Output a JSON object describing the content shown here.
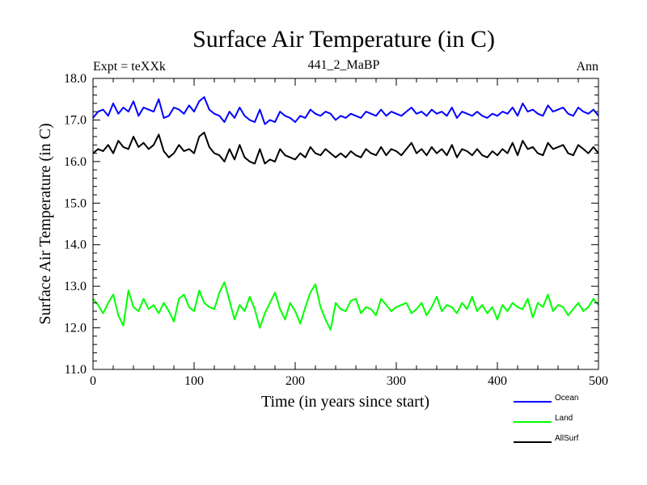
{
  "chart_data": {
    "type": "line",
    "title": "Surface Air Temperature (in C)",
    "subtitle": "441_2_MaBP",
    "left_label": "Expt = teXXk",
    "right_label": "Ann",
    "xlabel": "Time (in years since start)",
    "ylabel": "Surface Air Temperature (in C)",
    "xlim": [
      0,
      500
    ],
    "ylim": [
      11.0,
      18.0
    ],
    "xticks": [
      0,
      100,
      200,
      300,
      400,
      500
    ],
    "xtick_labels": [
      "0",
      "100",
      "200",
      "300",
      "400",
      "500"
    ],
    "yticks": [
      11.0,
      12.0,
      13.0,
      14.0,
      15.0,
      16.0,
      17.0,
      18.0
    ],
    "ytick_labels": [
      "11.0",
      "12.0",
      "13.0",
      "14.0",
      "15.0",
      "16.0",
      "17.0",
      "18.0"
    ],
    "grid": false,
    "legend_position": "bottom-right, below plot",
    "series": [
      {
        "name": "Ocean",
        "color": "#0000ff",
        "x_start": 0,
        "x_step": 5,
        "values": [
          17.05,
          17.2,
          17.25,
          17.1,
          17.4,
          17.15,
          17.3,
          17.2,
          17.45,
          17.1,
          17.3,
          17.25,
          17.2,
          17.5,
          17.05,
          17.1,
          17.3,
          17.25,
          17.15,
          17.35,
          17.2,
          17.45,
          17.55,
          17.25,
          17.15,
          17.1,
          16.95,
          17.2,
          17.05,
          17.3,
          17.1,
          17.0,
          16.95,
          17.25,
          16.9,
          17.0,
          16.95,
          17.2,
          17.1,
          17.05,
          16.95,
          17.1,
          17.05,
          17.25,
          17.15,
          17.1,
          17.2,
          17.15,
          17.0,
          17.1,
          17.05,
          17.15,
          17.1,
          17.05,
          17.2,
          17.15,
          17.1,
          17.25,
          17.1,
          17.2,
          17.15,
          17.1,
          17.2,
          17.3,
          17.15,
          17.2,
          17.1,
          17.25,
          17.15,
          17.2,
          17.1,
          17.3,
          17.05,
          17.2,
          17.15,
          17.1,
          17.2,
          17.1,
          17.05,
          17.15,
          17.1,
          17.2,
          17.15,
          17.3,
          17.1,
          17.4,
          17.2,
          17.25,
          17.15,
          17.1,
          17.35,
          17.2,
          17.25,
          17.3,
          17.15,
          17.1,
          17.3,
          17.2,
          17.15,
          17.25,
          17.1
        ]
      },
      {
        "name": "Land",
        "color": "#00ff00",
        "x_start": 0,
        "x_step": 5,
        "values": [
          12.7,
          12.55,
          12.35,
          12.6,
          12.8,
          12.3,
          12.05,
          12.9,
          12.5,
          12.4,
          12.7,
          12.45,
          12.55,
          12.35,
          12.6,
          12.4,
          12.15,
          12.7,
          12.8,
          12.5,
          12.4,
          12.9,
          12.6,
          12.5,
          12.45,
          12.85,
          13.1,
          12.65,
          12.2,
          12.55,
          12.4,
          12.75,
          12.45,
          12.0,
          12.35,
          12.6,
          12.85,
          12.45,
          12.2,
          12.6,
          12.4,
          12.1,
          12.5,
          12.85,
          13.05,
          12.5,
          12.2,
          11.95,
          12.6,
          12.45,
          12.4,
          12.65,
          12.7,
          12.35,
          12.5,
          12.45,
          12.3,
          12.7,
          12.55,
          12.4,
          12.5,
          12.55,
          12.6,
          12.35,
          12.45,
          12.6,
          12.3,
          12.5,
          12.75,
          12.4,
          12.55,
          12.5,
          12.35,
          12.6,
          12.45,
          12.75,
          12.4,
          12.55,
          12.35,
          12.5,
          12.2,
          12.55,
          12.4,
          12.6,
          12.5,
          12.45,
          12.7,
          12.25,
          12.6,
          12.5,
          12.8,
          12.4,
          12.55,
          12.5,
          12.3,
          12.45,
          12.6,
          12.4,
          12.5,
          12.7,
          12.55
        ]
      },
      {
        "name": "AllSurf",
        "color": "#000000",
        "x_start": 0,
        "x_step": 5,
        "values": [
          16.2,
          16.3,
          16.25,
          16.4,
          16.2,
          16.5,
          16.35,
          16.3,
          16.6,
          16.35,
          16.45,
          16.3,
          16.4,
          16.65,
          16.25,
          16.1,
          16.2,
          16.4,
          16.25,
          16.3,
          16.2,
          16.6,
          16.7,
          16.35,
          16.2,
          16.15,
          16.0,
          16.3,
          16.05,
          16.4,
          16.1,
          16.0,
          15.95,
          16.3,
          15.95,
          16.05,
          16.0,
          16.3,
          16.15,
          16.1,
          16.05,
          16.2,
          16.1,
          16.35,
          16.2,
          16.15,
          16.3,
          16.2,
          16.1,
          16.2,
          16.1,
          16.25,
          16.15,
          16.1,
          16.3,
          16.2,
          16.15,
          16.35,
          16.15,
          16.3,
          16.25,
          16.15,
          16.3,
          16.45,
          16.2,
          16.3,
          16.15,
          16.35,
          16.2,
          16.3,
          16.15,
          16.4,
          16.1,
          16.3,
          16.25,
          16.15,
          16.3,
          16.15,
          16.1,
          16.25,
          16.15,
          16.3,
          16.2,
          16.45,
          16.15,
          16.5,
          16.3,
          16.35,
          16.2,
          16.15,
          16.45,
          16.3,
          16.35,
          16.4,
          16.2,
          16.15,
          16.4,
          16.3,
          16.2,
          16.35,
          16.2
        ]
      }
    ]
  }
}
